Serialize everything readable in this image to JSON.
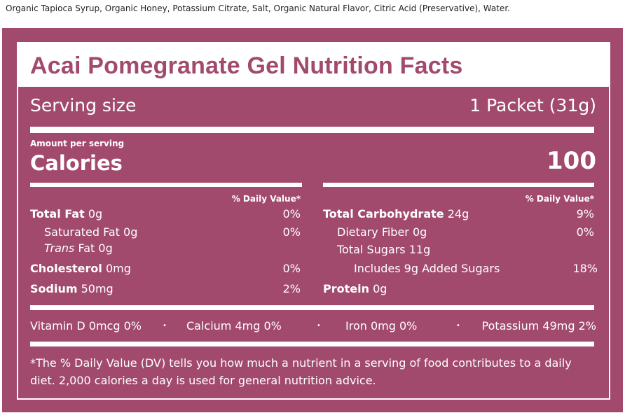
{
  "ingredients": "Organic Tapioca Syrup, Organic Honey, Potassium Citrate, Salt, Organic Natural Flavor, Citric Acid (Preservative), Water.",
  "title": "Acai Pomegranate Gel Nutrition Facts",
  "serving": {
    "label": "Serving size",
    "value": "1 Packet (31g)"
  },
  "amount_per_serving": "Amount per serving",
  "calories": {
    "label": "Calories",
    "value": "100"
  },
  "dv_header": "% Daily Value*",
  "left": {
    "total_fat": {
      "label": "Total Fat",
      "amount": "0g",
      "dv": "0%"
    },
    "saturated_fat": {
      "label": "Saturated Fat",
      "amount": "0g",
      "dv": "0%"
    },
    "trans_fat": {
      "label_italic": "Trans",
      "label": "Fat",
      "amount": "0g"
    },
    "cholesterol": {
      "label": "Cholesterol",
      "amount": "0mg",
      "dv": "0%"
    },
    "sodium": {
      "label": "Sodium",
      "amount": "50mg",
      "dv": "2%"
    }
  },
  "right": {
    "total_carb": {
      "label": "Total Carbohydrate",
      "amount": "24g",
      "dv": "9%"
    },
    "fiber": {
      "label": "Dietary Fiber",
      "amount": "0g",
      "dv": "0%"
    },
    "total_sugars": {
      "label": "Total Sugars",
      "amount": "11g"
    },
    "added_sugars": {
      "label": "Includes 9g Added Sugars",
      "dv": "18%"
    },
    "protein": {
      "label": "Protein",
      "amount": "0g"
    }
  },
  "vitamins": [
    {
      "text": "Vitamin D 0mcg 0%"
    },
    {
      "text": "Calcium 4mg 0%"
    },
    {
      "text": "Iron 0mg 0%"
    },
    {
      "text": "Potassium 49mg 2%"
    }
  ],
  "separator": "•",
  "footnote_line1": "*The % Daily Value (DV) tells you how much a nutrient in a serving of food contributes to a daily",
  "footnote_line2": "diet. 2,000 calories a day is used for general nutrition advice.",
  "colors": {
    "panel": "#a24a6d",
    "text": "#ffffff"
  }
}
